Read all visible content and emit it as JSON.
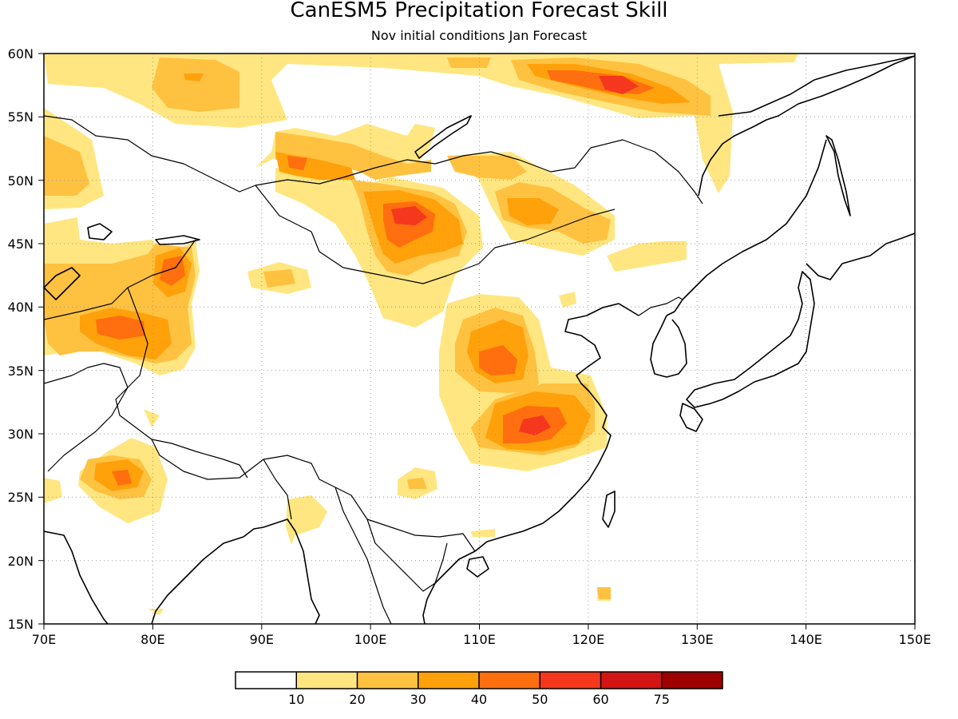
{
  "title": "CanESM5 Precipitation Forecast Skill",
  "subtitle": "Nov initial conditions  Jan Forecast",
  "axes": {
    "x_ticks": [
      "70E",
      "80E",
      "90E",
      "100E",
      "110E",
      "120E",
      "130E",
      "140E",
      "150E"
    ],
    "y_ticks": [
      "60N",
      "55N",
      "50N",
      "45N",
      "40N",
      "35N",
      "30N",
      "25N",
      "20N",
      "15N"
    ],
    "lon_range": [
      70,
      150
    ],
    "lat_range": [
      15,
      60
    ],
    "grid": true
  },
  "legend": {
    "labels": [
      "10",
      "20",
      "30",
      "40",
      "50",
      "60",
      "75"
    ],
    "colors": [
      "#ffffff",
      "#ffe680",
      "#ffc140",
      "#ffa10a",
      "#ff6e0f",
      "#f5371e",
      "#d21414",
      "#9e0000"
    ]
  },
  "map_data": {
    "type": "filled-contour",
    "regions": [
      {
        "level": 1,
        "lon": [
          74,
          132
        ],
        "lat": [
          39,
          60
        ]
      },
      {
        "level": 3,
        "lon": [
          79,
          84
        ],
        "lat": [
          36,
          45
        ]
      },
      {
        "level": 3,
        "lon": [
          100,
          107
        ],
        "lat": [
          43,
          48
        ]
      },
      {
        "level": 4,
        "lon": [
          110,
          117
        ],
        "lat": [
          28,
          38
        ]
      },
      {
        "level": 5,
        "lon": [
          120,
          125
        ],
        "lat": [
          56,
          58
        ]
      }
    ]
  }
}
